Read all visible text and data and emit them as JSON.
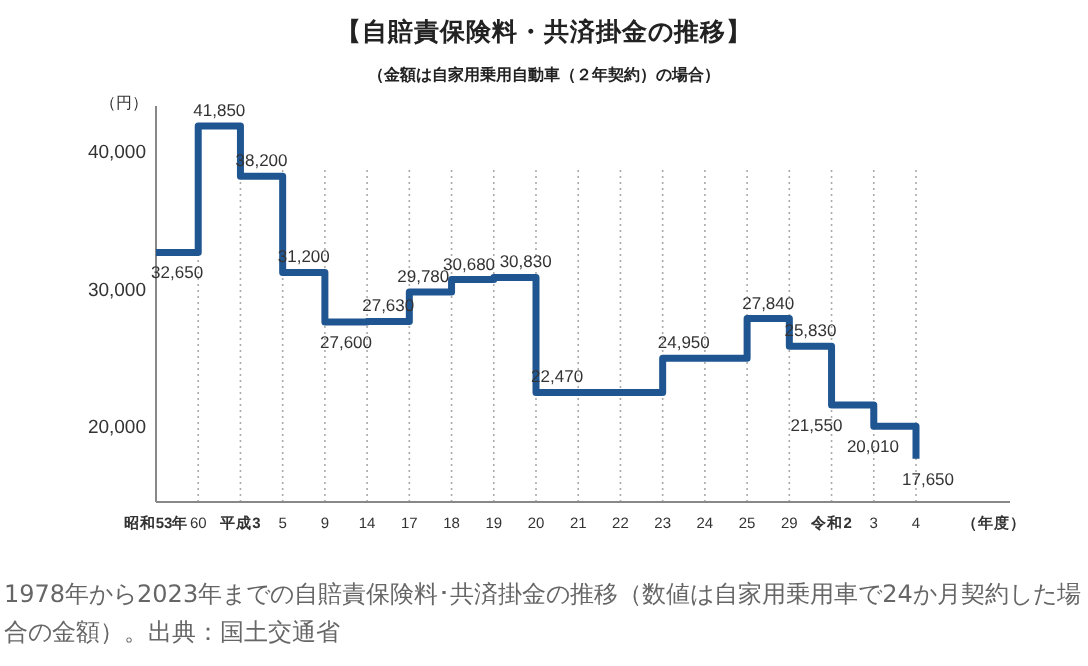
{
  "chart_data": {
    "type": "step",
    "title": "【自賠責保険料・共済掛金の推移】",
    "subtitle": "（金額は自家用乗用自動車（２年契約）の場合）",
    "ylabel": "（円）",
    "xlabel": "（年度）",
    "categories": [
      "昭和53年",
      "60",
      "平成3",
      "5",
      "9",
      "14",
      "17",
      "18",
      "19",
      "20",
      "21",
      "22",
      "23",
      "24",
      "25",
      "29",
      "令和2",
      "3",
      "4"
    ],
    "values": [
      32650,
      41850,
      38200,
      31200,
      27600,
      27630,
      29780,
      30680,
      30830,
      22470,
      22470,
      22470,
      24950,
      24950,
      27840,
      25830,
      21550,
      20010,
      17650
    ],
    "value_labels": [
      "32,650",
      "41,850",
      "38,200",
      "31,200",
      "27,600",
      "27,630",
      "29,780",
      "30,680",
      "30,830",
      "22,470",
      null,
      null,
      "24,950",
      null,
      "27,840",
      "25,830",
      "21,550",
      "20,010",
      "17,650"
    ],
    "color": "#1f5591",
    "ylim": [
      14500,
      43300
    ],
    "yticks": [
      {
        "value": 20000,
        "label": "20,000"
      },
      {
        "value": 30000,
        "label": "30,000"
      },
      {
        "value": 40000,
        "label": "40,000"
      }
    ],
    "grid": "x",
    "annotations": [
      "1978年から2023年までの自賠責保険料･共済掛金の推移（数値は自家用乗用車で24か月契約した場合の金額）。出典：国土交通省"
    ]
  }
}
